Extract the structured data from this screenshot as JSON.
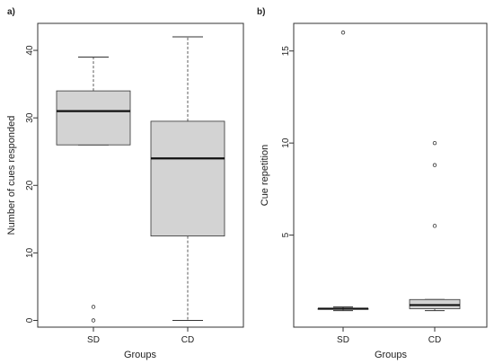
{
  "colors": {
    "box_fill": "#d3d3d3",
    "stroke": "#333333",
    "text": "#222222"
  },
  "chart_data": [
    {
      "type": "boxplot",
      "panel_label": "a)",
      "xlabel": "Groups",
      "ylabel": "Number of cues responded",
      "ylim": [
        -1,
        44
      ],
      "yticks": [
        0,
        10,
        20,
        30,
        40
      ],
      "categories": [
        "SD",
        "CD"
      ],
      "series": [
        {
          "category": "SD",
          "whisker_low": 26,
          "q1": 26,
          "median": 31,
          "q3": 34,
          "whisker_high": 39,
          "outliers": [
            2,
            0
          ]
        },
        {
          "category": "CD",
          "whisker_low": 0,
          "q1": 12.5,
          "median": 24,
          "q3": 29.5,
          "whisker_high": 42,
          "outliers": []
        }
      ],
      "grid": false
    },
    {
      "type": "boxplot",
      "panel_label": "b)",
      "xlabel": "Groups",
      "ylabel": "Cue repetition",
      "ylim": [
        0,
        16.5
      ],
      "yticks": [
        5,
        10,
        15
      ],
      "categories": [
        "SD",
        "CD"
      ],
      "series": [
        {
          "category": "SD",
          "whisker_low": 0.9,
          "q1": 1.0,
          "median": 1.0,
          "q3": 1.0,
          "whisker_high": 1.1,
          "outliers": [
            16
          ]
        },
        {
          "category": "CD",
          "whisker_low": 0.9,
          "q1": 1.0,
          "median": 1.2,
          "q3": 1.5,
          "whisker_high": 1.5,
          "outliers": [
            10,
            8.8,
            5.5
          ]
        }
      ],
      "grid": false
    }
  ]
}
